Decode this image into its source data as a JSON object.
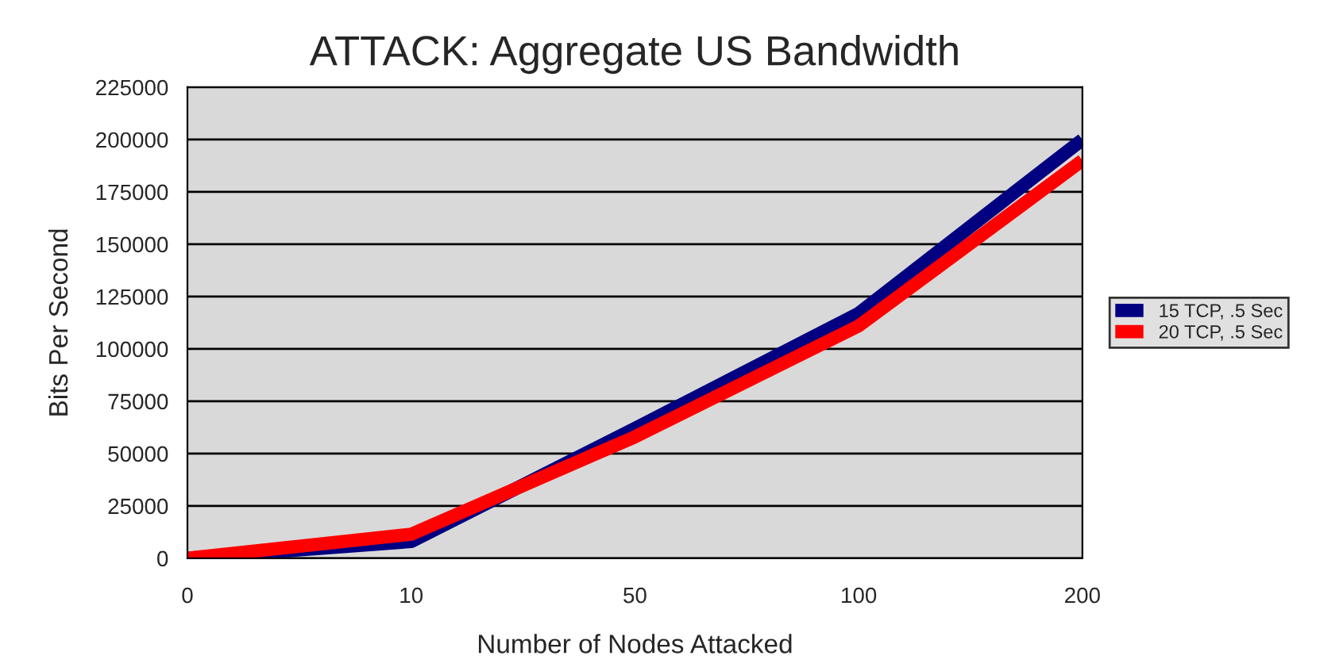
{
  "chart_data": {
    "type": "line",
    "title": "ATTACK: Aggregate US Bandwidth",
    "xlabel": "Number of Nodes Attacked",
    "ylabel": "Bits Per Second",
    "categories": [
      "0",
      "10",
      "50",
      "100",
      "200"
    ],
    "series": [
      {
        "name": "15 TCP, .5 Sec",
        "color": "#000080",
        "values": [
          0,
          8000,
          62000,
          117000,
          200000
        ]
      },
      {
        "name": "20 TCP, .5 Sec",
        "color": "#ff0000",
        "values": [
          0,
          11500,
          58000,
          111000,
          190000
        ]
      }
    ],
    "ylim": [
      0,
      225000
    ],
    "yticks": [
      0,
      25000,
      50000,
      75000,
      100000,
      125000,
      150000,
      175000,
      200000,
      225000
    ],
    "grid": "y",
    "legend": "right",
    "marker": "none",
    "line_style": "solid"
  }
}
